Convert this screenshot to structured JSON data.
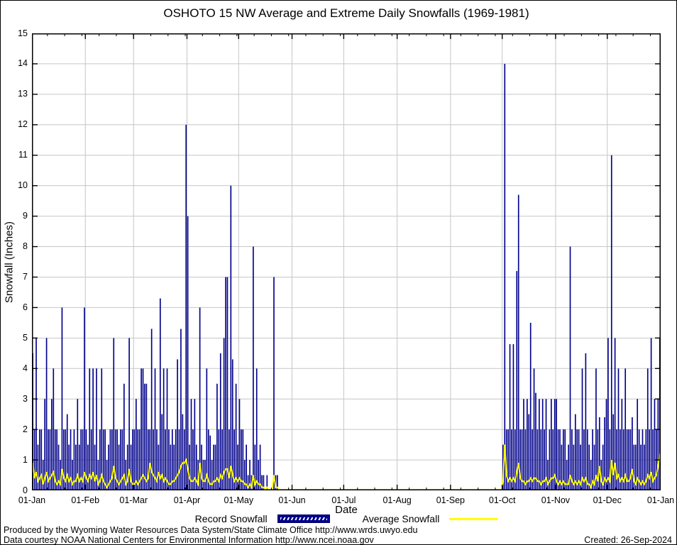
{
  "title": "OSHOTO 15 NW Average and Extreme Daily Snowfalls (1969-1981)",
  "y_axis": {
    "label": "Snowfall (Inches)",
    "min": 0,
    "max": 15,
    "tick_step": 1
  },
  "x_axis": {
    "label": "Date"
  },
  "legend": {
    "record_label": "Record Snowfall",
    "average_label": "Average Snowfall"
  },
  "footer": {
    "line1": "Produced by the Wyoming Water Resources Data System/State Climate Office http://www.wrds.uwyo.edu",
    "line2": "Data courtesy NOAA National Centers for Environmental Information http://www.ncei.noaa.gov",
    "created": "Created: 26-Sep-2024"
  },
  "colors": {
    "bar": "#00008b",
    "average_line": "#ffff00",
    "grid": "#c6c6c6",
    "axis": "#000000",
    "background": "#ffffff"
  },
  "chart_data": {
    "type": "bar",
    "title": "OSHOTO 15 NW Average and Extreme Daily Snowfalls (1969-1981)",
    "xlabel": "Date",
    "ylabel": "Snowfall (Inches)",
    "ylim": [
      0,
      15
    ],
    "x_unit": "day_of_year_1_to_365",
    "grid": true,
    "legend_position": "below",
    "x_tick_days": [
      1,
      32,
      60,
      91,
      121,
      152,
      182,
      213,
      244,
      274,
      305,
      335,
      366
    ],
    "x_tick_labels": [
      "01-Jan",
      "01-Feb",
      "01-Mar",
      "01-Apr",
      "01-May",
      "01-Jun",
      "01-Jul",
      "01-Aug",
      "01-Sep",
      "01-Oct",
      "01-Nov",
      "01-Dec",
      "01-Jan"
    ],
    "notable_records": [
      {
        "date": "31-Mar",
        "inches": 12.0
      },
      {
        "date": "02-Oct",
        "inches": 14.0
      },
      {
        "date": "03-Dec",
        "inches": 11.0
      },
      {
        "date": "26-Apr",
        "inches": 10.0
      },
      {
        "date": "10-Oct",
        "inches": 9.7
      },
      {
        "date": "01-Apr",
        "inches": 9.0
      },
      {
        "date": "09-May",
        "inches": 8.0
      },
      {
        "date": "09-Nov",
        "inches": 8.0
      },
      {
        "date": "21-May",
        "inches": 7.0
      }
    ],
    "series": [
      {
        "name": "Record Snowfall",
        "type": "bar",
        "color": "#00008b",
        "values": [
          4.5,
          2,
          5,
          1.5,
          2,
          2,
          1,
          3,
          5,
          2,
          2,
          3,
          4,
          2,
          2,
          1.5,
          1,
          6,
          2,
          2,
          2.5,
          1.5,
          2,
          1,
          2,
          1.5,
          3,
          1.5,
          2,
          2,
          6,
          2,
          1.5,
          4,
          2,
          4,
          1.5,
          4,
          1,
          2,
          4,
          2,
          2,
          1,
          1.5,
          2,
          2,
          5,
          2,
          2,
          1.5,
          2,
          2,
          3.5,
          1,
          1.5,
          5,
          1.5,
          2,
          2,
          3,
          2,
          2,
          4,
          4,
          3.5,
          3.5,
          2,
          2,
          5.3,
          2,
          4,
          2,
          1.5,
          6.3,
          2.5,
          4,
          2,
          4,
          2,
          1.5,
          2,
          1.5,
          2,
          4.3,
          2,
          5.3,
          2.5,
          2,
          12,
          9,
          1.5,
          3,
          2,
          3,
          1.5,
          1,
          6,
          1.5,
          1,
          1,
          4,
          2,
          1.8,
          1,
          1.5,
          1.5,
          3.5,
          2,
          4.5,
          2,
          5,
          7,
          7,
          2,
          10,
          4.3,
          2,
          3.5,
          1.5,
          3,
          2,
          2,
          1,
          1.5,
          0.5,
          1,
          0.5,
          8,
          1.5,
          4,
          1,
          1.5,
          0.5,
          0.5,
          0,
          0.5,
          0,
          0,
          0,
          7,
          0.5,
          0.5,
          0,
          0,
          0,
          0,
          0,
          0,
          0,
          0,
          0,
          0,
          0,
          0,
          0,
          0,
          0,
          0,
          0,
          0,
          0,
          0,
          0,
          0,
          0,
          0,
          0,
          0,
          0,
          0,
          0,
          0,
          0,
          0,
          0,
          0,
          0,
          0,
          0,
          0,
          0,
          0,
          0,
          0,
          0,
          0,
          0,
          0,
          0,
          0,
          0,
          0,
          0,
          0,
          0,
          0,
          0,
          0,
          0,
          0,
          0,
          0,
          0,
          0,
          0,
          0,
          0,
          0,
          0,
          0,
          0,
          0,
          0,
          0,
          0,
          0,
          0,
          0,
          0,
          0,
          0,
          0,
          0,
          0,
          0,
          0,
          0,
          0,
          0,
          0,
          0,
          0,
          0,
          0,
          0,
          0,
          0,
          0,
          0,
          0,
          0,
          0,
          0,
          0,
          0,
          0,
          0,
          0,
          0,
          0,
          0,
          0,
          0,
          0,
          0,
          0,
          0,
          0,
          0,
          0,
          0,
          0,
          0,
          0,
          0,
          0,
          0,
          0,
          0,
          0,
          0,
          0,
          1.5,
          14,
          2,
          2,
          4.8,
          2,
          4.8,
          2,
          7.2,
          9.7,
          2,
          2,
          3,
          2,
          3,
          2.5,
          5.5,
          2,
          4,
          3.2,
          2,
          3,
          2,
          3,
          2,
          3,
          1,
          2,
          3,
          2,
          3,
          3,
          2,
          2,
          1.5,
          2,
          2,
          1,
          1.5,
          8,
          2,
          1.5,
          2.5,
          2,
          2,
          1.5,
          4,
          2,
          4.5,
          2,
          1.5,
          1,
          2,
          1.5,
          4,
          2,
          2.4,
          1,
          1.5,
          2.4,
          3,
          5,
          2,
          11,
          2.5,
          5,
          2,
          4,
          2,
          3,
          2,
          4,
          2,
          2,
          2,
          2.4,
          1.5,
          1.5,
          3,
          2,
          1.5,
          2,
          1.5,
          2,
          4,
          2,
          5,
          2,
          3,
          2,
          3,
          5
        ]
      },
      {
        "name": "Average Snowfall",
        "type": "line",
        "color": "#ffff00",
        "values": [
          0.9,
          0.4,
          0.6,
          0.3,
          0.4,
          0.5,
          0.2,
          0.4,
          0.6,
          0.3,
          0.4,
          0.5,
          0.6,
          0.3,
          0.2,
          0.3,
          0.2,
          0.7,
          0.4,
          0.3,
          0.5,
          0.3,
          0.4,
          0.2,
          0.3,
          0.3,
          0.5,
          0.3,
          0.4,
          0.3,
          0.6,
          0.4,
          0.3,
          0.5,
          0.4,
          0.6,
          0.3,
          0.5,
          0.2,
          0.3,
          0.5,
          0.3,
          0.2,
          0.1,
          0.2,
          0.3,
          0.4,
          0.8,
          0.4,
          0.3,
          0.2,
          0.3,
          0.4,
          0.5,
          0.2,
          0.3,
          0.7,
          0.3,
          0.2,
          0.2,
          0.3,
          0.2,
          0.3,
          0.4,
          0.5,
          0.4,
          0.3,
          0.4,
          0.9,
          0.6,
          0.5,
          0.4,
          0.3,
          0.6,
          0.4,
          0.5,
          0.3,
          0.4,
          0.3,
          0.2,
          0.2,
          0.3,
          0.3,
          0.4,
          0.5,
          0.6,
          0.8,
          0.9,
          0.9,
          1.0,
          0.7,
          0.4,
          0.3,
          0.3,
          0.4,
          0.3,
          0.2,
          0.9,
          0.4,
          0.3,
          0.3,
          0.5,
          0.3,
          0.2,
          0.2,
          0.3,
          0.3,
          0.4,
          0.3,
          0.5,
          0.4,
          0.6,
          0.7,
          0.7,
          0.4,
          0.8,
          0.5,
          0.3,
          0.4,
          0.3,
          0.4,
          0.3,
          0.3,
          0.2,
          0.2,
          0.1,
          0.2,
          0.1,
          0.5,
          0.2,
          0.3,
          0.2,
          0.2,
          0.1,
          0.1,
          0,
          0.1,
          0,
          0,
          0,
          0.5,
          0.1,
          0.1,
          0,
          0,
          0,
          0,
          0,
          0,
          0,
          0,
          0,
          0,
          0,
          0,
          0,
          0,
          0,
          0,
          0,
          0,
          0,
          0,
          0,
          0,
          0,
          0,
          0,
          0,
          0,
          0,
          0,
          0,
          0,
          0,
          0,
          0,
          0,
          0,
          0,
          0,
          0,
          0,
          0,
          0,
          0,
          0,
          0,
          0,
          0,
          0,
          0,
          0,
          0,
          0,
          0,
          0,
          0,
          0,
          0,
          0,
          0,
          0,
          0,
          0,
          0,
          0,
          0,
          0,
          0,
          0,
          0,
          0,
          0,
          0,
          0,
          0,
          0,
          0,
          0,
          0,
          0,
          0,
          0,
          0,
          0,
          0,
          0,
          0,
          0,
          0,
          0,
          0,
          0,
          0,
          0,
          0,
          0,
          0,
          0,
          0,
          0,
          0,
          0,
          0,
          0,
          0,
          0,
          0,
          0,
          0,
          0,
          0,
          0,
          0,
          0,
          0,
          0,
          0,
          0,
          0,
          0,
          0,
          0,
          0,
          0,
          0,
          0,
          0,
          0,
          0,
          0,
          0,
          0.3,
          1.5,
          0.5,
          0.3,
          0.4,
          0.3,
          0.4,
          0.3,
          0.6,
          0.9,
          0.4,
          0.3,
          0.3,
          0.2,
          0.3,
          0.3,
          0.4,
          0.3,
          0.4,
          0.4,
          0.3,
          0.3,
          0.2,
          0.3,
          0.3,
          0.4,
          0.2,
          0.3,
          0.4,
          0.4,
          0.5,
          0.3,
          0.2,
          0.3,
          0.2,
          0.3,
          0.2,
          0.2,
          0.2,
          0.5,
          0.3,
          0.2,
          0.3,
          0.2,
          0.3,
          0.2,
          0.4,
          0.3,
          0.4,
          0.2,
          0.2,
          0.1,
          0.3,
          0.2,
          0.5,
          0.3,
          0.8,
          0.3,
          0.2,
          0.4,
          0.3,
          0.4,
          0.3,
          1.0,
          0.5,
          0.9,
          0.4,
          0.5,
          0.3,
          0.4,
          0.3,
          0.5,
          0.3,
          0.3,
          0.4,
          0.7,
          0.3,
          0.2,
          0.4,
          0.3,
          0.2,
          0.3,
          0.2,
          0.3,
          0.5,
          0.4,
          0.6,
          0.3,
          0.4,
          0.5,
          0.8,
          1.2
        ]
      }
    ]
  }
}
